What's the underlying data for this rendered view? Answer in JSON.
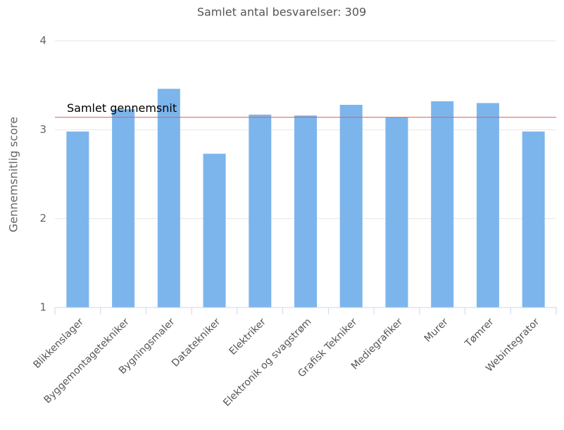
{
  "chart_data": {
    "type": "bar",
    "title": "Samlet antal besvarelser: 309",
    "y_label": "Gennemsnitlig score",
    "categories": [
      "Blikkenslager",
      "Byggemontagetekniker",
      "Bygningsmaler",
      "Datatekniker",
      "Elektriker",
      "Elektronik og svagstrøm",
      "Grafisk Tekniker",
      "Mediegrafiker",
      "Murer",
      "Tømrer",
      "Webintegrator"
    ],
    "values": [
      2.98,
      3.23,
      3.46,
      2.73,
      3.17,
      3.16,
      3.28,
      3.14,
      3.32,
      3.3,
      2.98
    ],
    "color": "#7cb5ec",
    "ylim": [
      1,
      4
    ],
    "yticks": [
      1,
      2,
      3,
      4
    ],
    "grid": true,
    "average": {
      "value": 3.14,
      "label": "Samlet gennemsnit",
      "color": "#e8595d"
    }
  }
}
